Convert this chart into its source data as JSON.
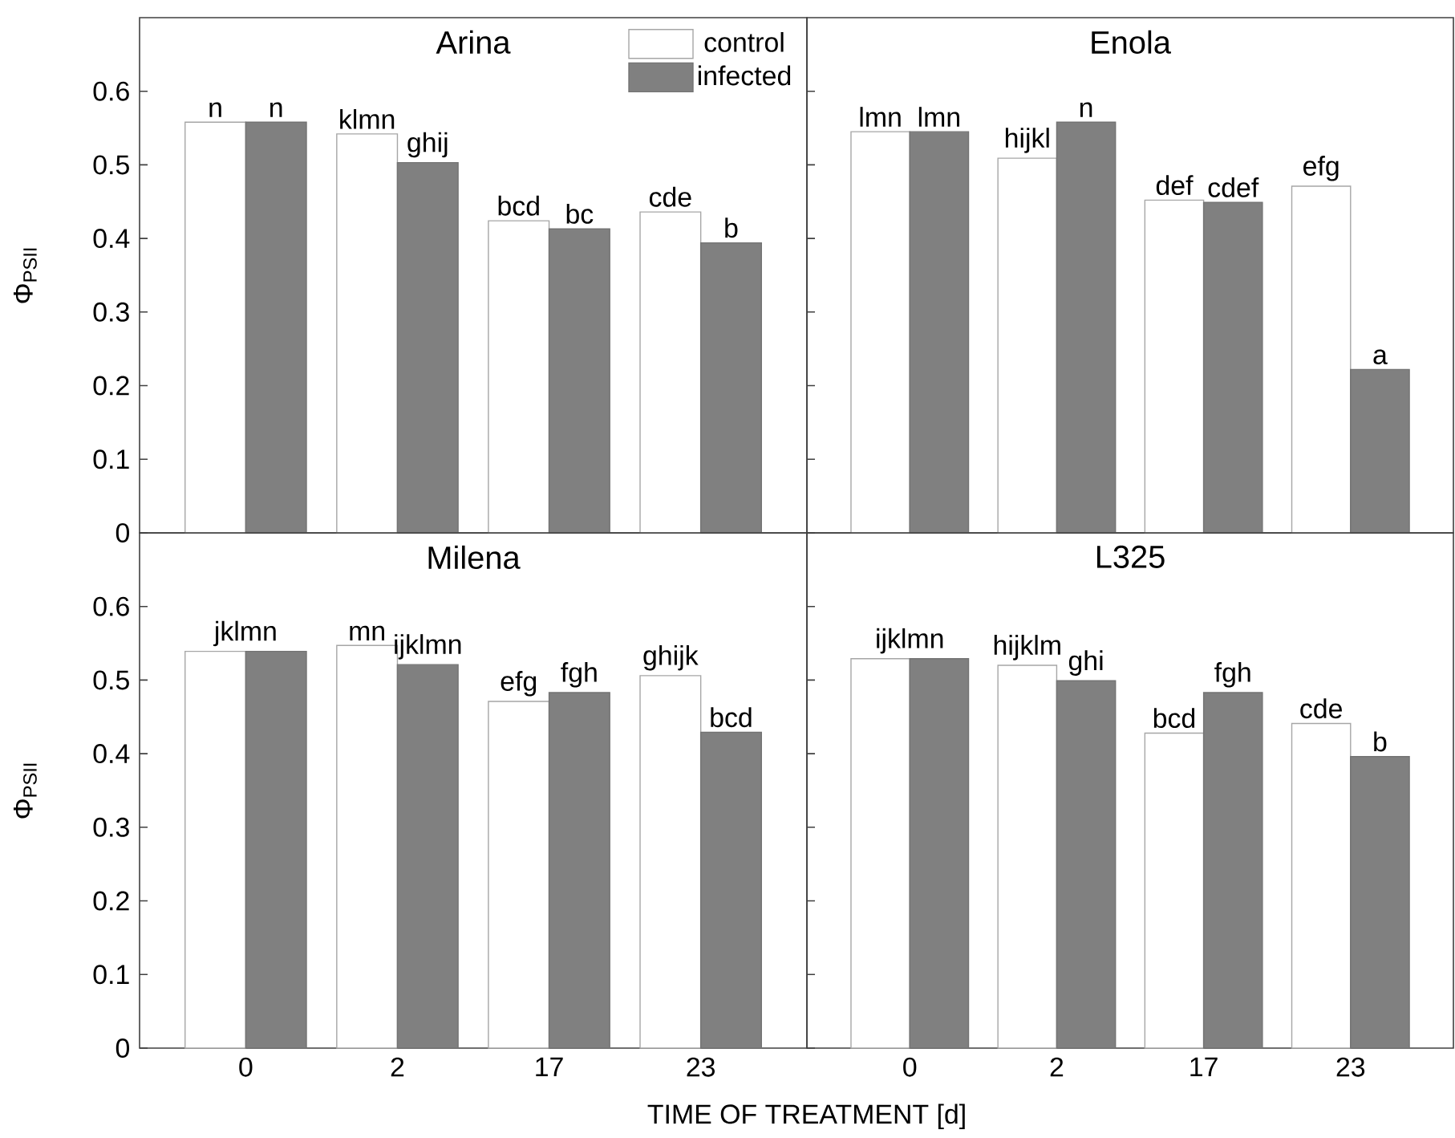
{
  "chart_data": [
    {
      "type": "bar",
      "title": "Arina",
      "ylabel": "Φ$_{PSII}$",
      "categories": [
        "0",
        "2",
        "17",
        "23"
      ],
      "ylim": [
        0,
        0.7
      ],
      "yticks": [
        0,
        0.1,
        0.2,
        0.3,
        0.4,
        0.5,
        0.6
      ],
      "tick_labels": "y",
      "legend": "top right",
      "series": [
        {
          "name": "control",
          "color": "#ffffff",
          "values": [
            0.558,
            0.542,
            0.424,
            0.436
          ],
          "value_labels": [
            "n",
            "klmn",
            "bcd",
            "cde"
          ]
        },
        {
          "name": "infected",
          "color": "#808080",
          "values": [
            0.558,
            0.503,
            0.413,
            0.394
          ],
          "value_labels": [
            "n",
            "ghij",
            "bc",
            "b"
          ]
        }
      ]
    },
    {
      "type": "bar",
      "title": "Enola",
      "categories": [
        "0",
        "2",
        "17",
        "23"
      ],
      "ylim": [
        0,
        0.7
      ],
      "yticks": [
        0,
        0.1,
        0.2,
        0.3,
        0.4,
        0.5,
        0.6
      ],
      "tick_labels": false,
      "series": [
        {
          "color": "#ffffff",
          "values": [
            0.545,
            0.509,
            0.452,
            0.471
          ],
          "value_labels": [
            "lmn",
            "hijkl",
            "def",
            "efg"
          ]
        },
        {
          "color": "#808080",
          "values": [
            0.545,
            0.558,
            0.449,
            0.222
          ],
          "value_labels": [
            "lmn",
            "n",
            "cdef",
            "a"
          ]
        }
      ]
    },
    {
      "type": "bar",
      "title": "Milena",
      "ylabel": "Φ$_{PSII}$",
      "xlabel": "TIME OF TREATMENT [d]",
      "categories": [
        "0",
        "2",
        "17",
        "23"
      ],
      "ylim": [
        0,
        0.7
      ],
      "yticks": [
        0,
        0.1,
        0.2,
        0.3,
        0.4,
        0.5,
        0.6
      ],
      "series": [
        {
          "color": "#ffffff",
          "values": [
            0.539,
            0.547,
            0.471,
            0.506
          ],
          "value_labels": [
            "jklmn",
            "mn",
            "efg",
            "ghijk"
          ]
        },
        {
          "color": "#808080",
          "values": [
            0.539,
            0.521,
            0.483,
            0.429
          ],
          "value_labels": [
            null,
            "ijklmn",
            "fgh",
            "bcd"
          ]
        }
      ]
    },
    {
      "type": "bar",
      "title": "L325",
      "categories": [
        "0",
        "2",
        "17",
        "23"
      ],
      "ylim": [
        0,
        0.7
      ],
      "yticks": [
        0,
        0.1,
        0.2,
        0.3,
        0.4,
        0.5,
        0.6
      ],
      "tick_labels": "x",
      "series": [
        {
          "color": "#ffffff",
          "values": [
            0.529,
            0.52,
            0.428,
            0.441
          ],
          "value_labels": [
            "ijklmn",
            "hijklm",
            "bcd",
            "cde"
          ]
        },
        {
          "color": "#808080",
          "values": [
            0.529,
            0.499,
            0.483,
            0.396
          ],
          "value_labels": [
            null,
            "ghi",
            "fgh",
            "b"
          ]
        }
      ]
    }
  ]
}
